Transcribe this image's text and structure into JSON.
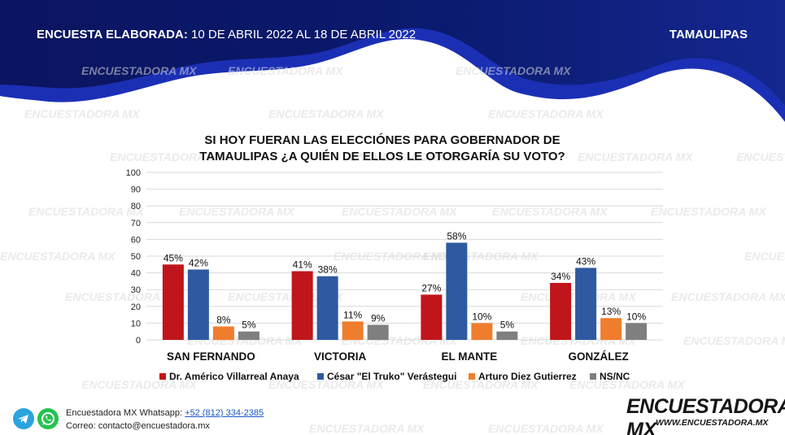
{
  "header": {
    "label": "ENCUESTA ELABORADA:",
    "dates": "10 DE ABRIL 2022 AL 18 DE ABRIL 2022",
    "region": "TAMAULIPAS"
  },
  "watermark": "ENCUESTADORA MX",
  "footer": {
    "whatsapp_label": "Encuestadora MX Whatsapp:",
    "phone": "+52 (812) 334-2385",
    "email_line": "Correo: contacto@encuestadora.mx",
    "logo": "ENCUESTADORA MX",
    "website": "WWW.ENCUESTADORA.MX"
  },
  "colors": {
    "navy": "#0a1a6e",
    "bright_blue": "#1b2fb5"
  },
  "icons": [
    "telegram-icon",
    "whatsapp-icon"
  ],
  "chart_data": {
    "type": "bar",
    "title_line1": "SI HOY FUERAN LAS ELECCIÓNES PARA GOBERNADOR DE",
    "title_line2": "TAMAULIPAS ¿A QUIÉN DE ELLOS LE OTORGARÍA SU VOTO?",
    "categories": [
      "SAN FERNANDO",
      "VICTORIA",
      "EL MANTE",
      "GONZÁLEZ"
    ],
    "series": [
      {
        "name": "Dr. Américo Villarreal Anaya",
        "color": "#c0151b",
        "values": [
          45,
          41,
          27,
          34
        ]
      },
      {
        "name": "César \"El Truko\" Verástegui",
        "color": "#2e5aa1",
        "values": [
          42,
          38,
          58,
          43
        ]
      },
      {
        "name": "Arturo Diez Gutierrez",
        "color": "#ef7d2e",
        "values": [
          8,
          11,
          10,
          13
        ]
      },
      {
        "name": "NS/NC",
        "color": "#7f7f7f",
        "values": [
          5,
          9,
          5,
          10
        ]
      }
    ],
    "ylim": [
      0,
      100
    ],
    "yticks": [
      "0",
      "10",
      "20",
      "30",
      "40",
      "50",
      "60",
      "70",
      "80",
      "90",
      "100"
    ],
    "value_suffix": "%",
    "grid": true,
    "legend": "bottom"
  }
}
